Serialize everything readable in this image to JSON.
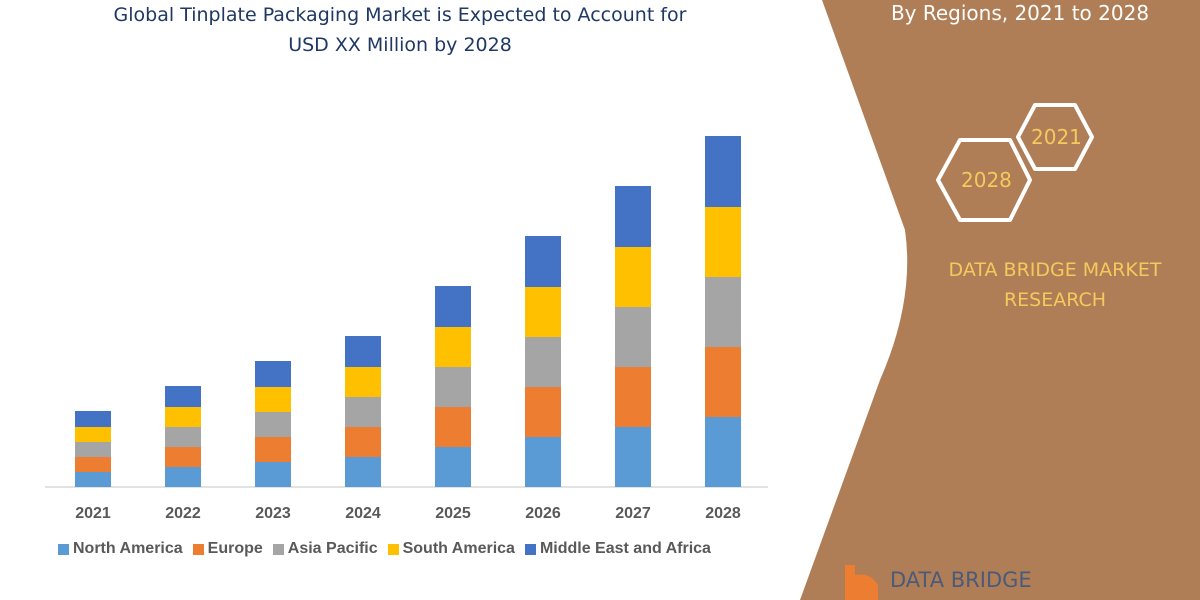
{
  "title_line1": "Global Tinplate Packaging Market is Expected to Account for",
  "title_line2": "USD XX Million by 2028",
  "side_panel": {
    "subtitle": "By Regions, 2021 to 2028",
    "hex_left": "2028",
    "hex_right": "2021",
    "brand_line1": "DATA BRIDGE MARKET",
    "brand_line2": "RESEARCH",
    "logo_text": "DATA BRIDGE",
    "panel_color": "#B07E56"
  },
  "chart_data": {
    "type": "bar",
    "stacked": true,
    "categories": [
      "2021",
      "2022",
      "2023",
      "2024",
      "2025",
      "2026",
      "2027",
      "2028"
    ],
    "series": [
      {
        "name": "North America",
        "color": "#5B9BD5",
        "values": [
          15,
          20,
          25,
          30,
          40,
          50,
          60,
          70
        ]
      },
      {
        "name": "Europe",
        "color": "#ED7D31",
        "values": [
          15,
          20,
          25,
          30,
          40,
          50,
          60,
          70
        ]
      },
      {
        "name": "Asia Pacific",
        "color": "#A5A5A5",
        "values": [
          15,
          20,
          25,
          30,
          40,
          50,
          60,
          70
        ]
      },
      {
        "name": "South America",
        "color": "#FFC000",
        "values": [
          15,
          20,
          25,
          30,
          40,
          50,
          60,
          70
        ]
      },
      {
        "name": "Middle East and Africa",
        "color": "#4472C4",
        "values": [
          16,
          21,
          26,
          31,
          41,
          51,
          61,
          71
        ]
      }
    ],
    "grid": false,
    "y_axis_shown": false,
    "legend": "bottom"
  }
}
